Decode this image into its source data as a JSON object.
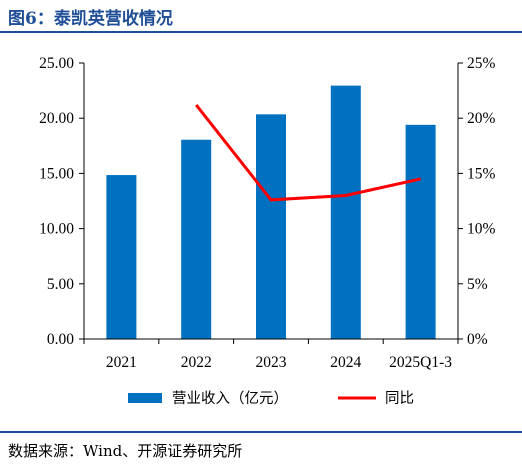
{
  "header": {
    "title": "图6：泰凯英营收情况"
  },
  "footer": {
    "source": "数据来源：Wind、开源证券研究所"
  },
  "colors": {
    "bar": "#0070c0",
    "line": "#ff0000",
    "accent": "#1f4e96"
  },
  "chart_data": {
    "type": "bar",
    "categories": [
      "2021",
      "2022",
      "2023",
      "2024",
      "2025Q1-3"
    ],
    "series": [
      {
        "name": "营业收入（亿元）",
        "type": "bar",
        "axis": "left",
        "values": [
          14.85,
          18.05,
          20.35,
          22.95,
          19.4
        ]
      },
      {
        "name": "同比",
        "type": "line",
        "axis": "right",
        "values": [
          null,
          21.2,
          12.6,
          13.0,
          14.5
        ]
      }
    ],
    "y_left": {
      "ticks": [
        "0.00",
        "5.00",
        "10.00",
        "15.00",
        "20.00",
        "25.00"
      ],
      "ylim": [
        0,
        25
      ]
    },
    "y_right": {
      "ticks": [
        "0%",
        "5%",
        "10%",
        "15%",
        "20%",
        "25%"
      ],
      "ylim": [
        0,
        25
      ]
    },
    "grid": false,
    "legend_position": "bottom"
  }
}
